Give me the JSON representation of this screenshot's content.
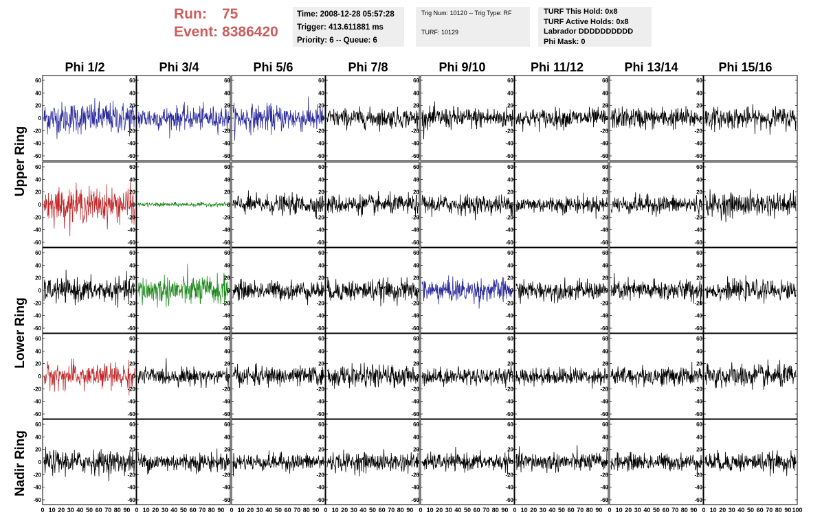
{
  "header": {
    "run_label": "Run:",
    "run_value": "75",
    "event_label": "Event:",
    "event_value": "8386420"
  },
  "info_box_1": {
    "time": "Time: 2008-12-28 05:57:28",
    "trigger": "Trigger: 413.611881 ms",
    "priority": "Priority: 6 -- Queue: 6"
  },
  "info_box_2": {
    "trig": "Trig Num: 10120 -- Trig Type: RF",
    "turf": "TURF: 10129"
  },
  "info_box_3": {
    "this_hold": "TURF This Hold: 0x8",
    "active_holds": "TURF Active Holds: 0x8",
    "labrador": "Labrador DDDDDDDDDD",
    "phi_mask": "Phi Mask: 0"
  },
  "columns": [
    "Phi 1/2",
    "Phi 3/4",
    "Phi 5/6",
    "Phi 7/8",
    "Phi 9/10",
    "Phi 11/12",
    "Phi 13/14",
    "Phi 15/16"
  ],
  "rows": [
    "Upper Ring",
    "Lower Ring",
    "Nadir Ring"
  ],
  "colors": {
    "blue": "#2b2b9e",
    "red": "#c0282a",
    "green": "#1e8a1e",
    "black": "#000000",
    "header_red": "#cd5c5c",
    "info_bg": "#eeeeee"
  },
  "chart_data": {
    "type": "line",
    "description_units": "waveform amplitude vs sample",
    "ylim": [
      -60,
      60
    ],
    "yticks": [
      "60",
      "40",
      "20",
      "0",
      "-20",
      "-40",
      "-60"
    ],
    "xlim": [
      0,
      100
    ],
    "xticks": [
      "0",
      "10",
      "20",
      "30",
      "40",
      "50",
      "60",
      "70",
      "80",
      "90",
      "100"
    ],
    "panel_colors": [
      [
        "blue",
        "blue",
        "blue",
        "black",
        "black",
        "black",
        "black",
        "black"
      ],
      [
        "red",
        "green",
        "black",
        "black",
        "black",
        "black",
        "black",
        "black"
      ],
      [
        "black",
        "green",
        "black",
        "black",
        "blue",
        "black",
        "black",
        "black"
      ],
      [
        "red",
        "black",
        "black",
        "black",
        "black",
        "black",
        "black",
        "black"
      ],
      [
        "black",
        "black",
        "black",
        "black",
        "black",
        "black",
        "black",
        "black"
      ]
    ],
    "panel_amplitude": [
      [
        30,
        22,
        25,
        18,
        20,
        18,
        20,
        20
      ],
      [
        32,
        4,
        18,
        18,
        18,
        16,
        17,
        22
      ],
      [
        22,
        28,
        18,
        20,
        22,
        18,
        20,
        18
      ],
      [
        24,
        16,
        18,
        20,
        16,
        16,
        18,
        22
      ],
      [
        22,
        18,
        16,
        18,
        16,
        18,
        16,
        18
      ]
    ]
  }
}
